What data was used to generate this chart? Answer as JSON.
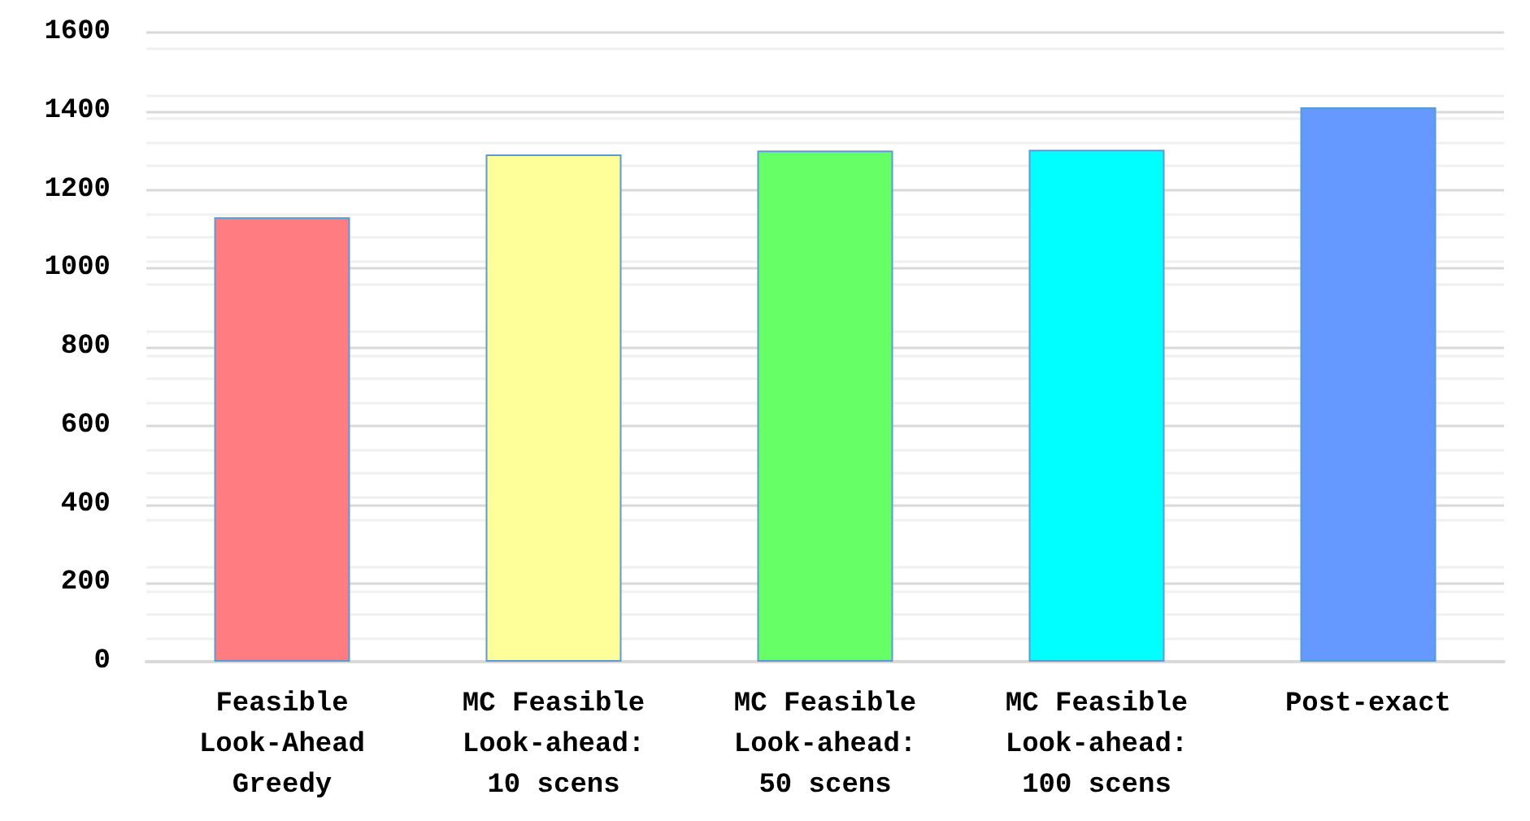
{
  "chart_data": {
    "type": "bar",
    "categories": [
      "Feasible\nLook-Ahead\nGreedy",
      "MC Feasible\nLook-ahead:\n10 scens",
      "MC Feasible\nLook-ahead:\n50 scens",
      "MC Feasible\nLook-ahead:\n100 scens",
      "Post-exact"
    ],
    "values": [
      1130,
      1290,
      1300,
      1302,
      1410
    ],
    "colors": [
      "#ff7c80",
      "#ffff99",
      "#66ff66",
      "#00ffff",
      "#6699ff"
    ],
    "ylim": [
      0,
      1600
    ],
    "yticks": [
      0,
      200,
      400,
      600,
      800,
      1000,
      1200,
      1400,
      1600
    ],
    "grid": "y"
  }
}
